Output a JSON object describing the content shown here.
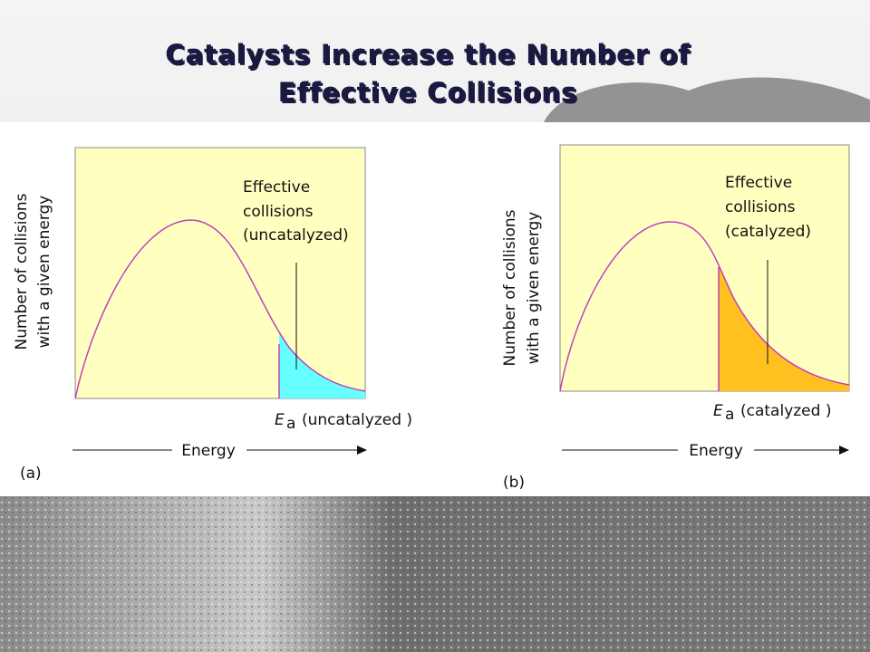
{
  "title": {
    "lines": [
      "Catalysts Increase the Number of",
      "Effective Collisions"
    ]
  },
  "panels": [
    {
      "label": "(a)",
      "y_axis_label": [
        "Number of collisions",
        "with a given energy"
      ],
      "annotation": [
        "Effective",
        "collisions",
        "(uncatalyzed)"
      ],
      "ea_symbol": "E",
      "ea_subscript": "a",
      "ea_text": "(uncatalyzed )",
      "x_axis_label": "Energy"
    },
    {
      "label": "(b)",
      "y_axis_label": [
        "Number of collisions",
        "with a given energy"
      ],
      "annotation": [
        "Effective",
        "collisions",
        "(catalyzed)"
      ],
      "ea_symbol": "E",
      "ea_subscript": "a",
      "ea_text": "(catalyzed )",
      "x_axis_label": "Energy"
    }
  ]
}
